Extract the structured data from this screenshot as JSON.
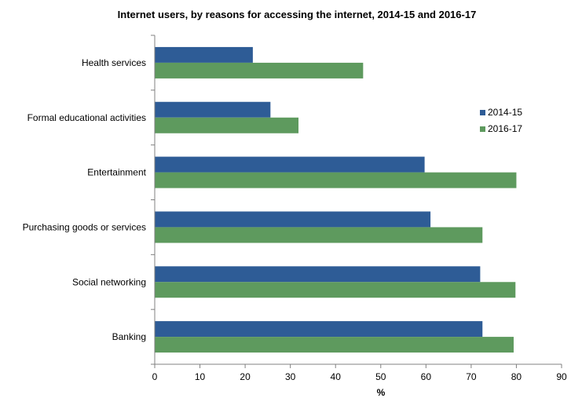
{
  "chart_data": {
    "type": "bar",
    "orientation": "horizontal",
    "title": "Internet users,  by reasons for accessing  the internet, 2014-15  and 2016-17",
    "xlabel": "%",
    "ylabel": "",
    "xlim": [
      0,
      90
    ],
    "x_ticks": [
      "0",
      "10",
      "20",
      "30",
      "40",
      "50",
      "60",
      "70",
      "80",
      "90"
    ],
    "categories": [
      "Health services",
      "Formal educational activities",
      "Entertainment",
      "Purchasing goods or services",
      "Social networking",
      "Banking"
    ],
    "series": [
      {
        "name": "2014-15",
        "color": "#2E5C96",
        "values": [
          21.7,
          25.6,
          59.7,
          61.0,
          72.0,
          72.5
        ]
      },
      {
        "name": "2016-17",
        "color": "#5E9A5E",
        "values": [
          46.1,
          31.8,
          80.0,
          72.5,
          79.8,
          79.4
        ]
      }
    ],
    "grid": false,
    "legend_position": "right"
  }
}
